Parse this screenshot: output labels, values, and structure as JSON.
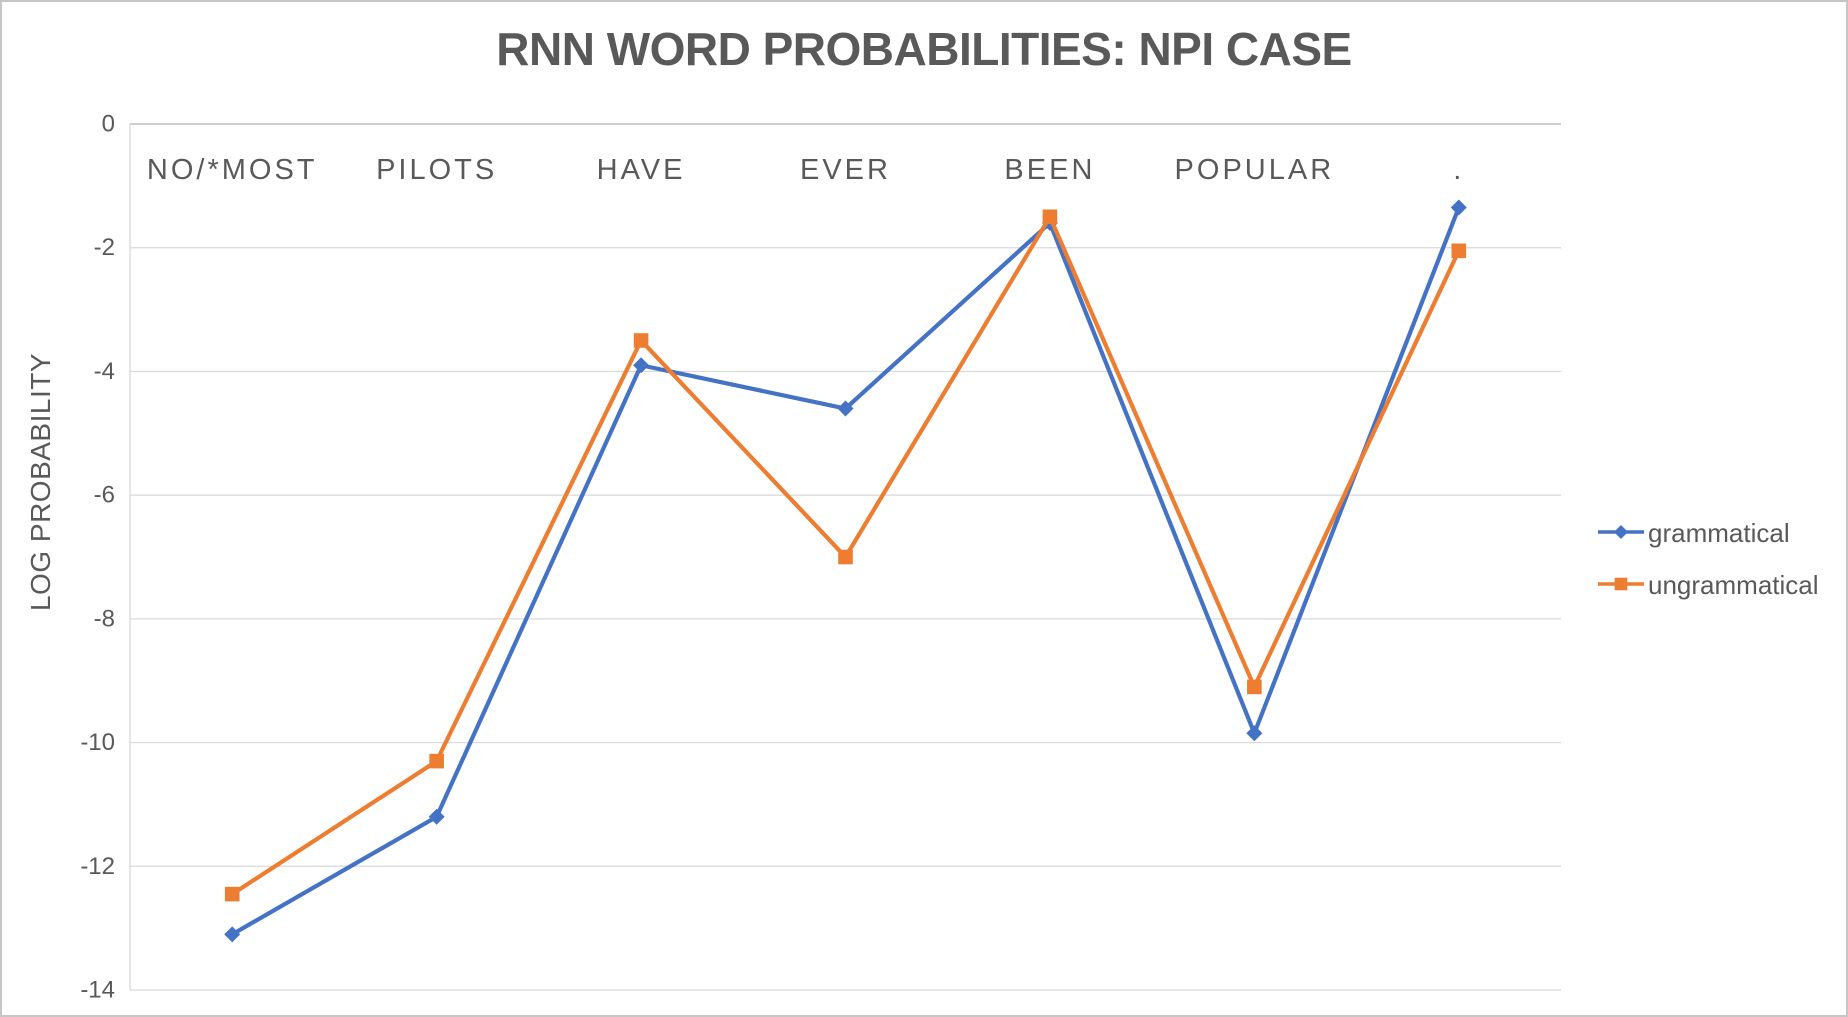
{
  "window": {
    "background": "#FFFFFF",
    "border_color": "#C6C6C6"
  },
  "chart_data": {
    "type": "line",
    "title": "RNN WORD PROBABILITIES: NPI CASE",
    "ylabel": "LOG PROBABILITY",
    "xlabel": "",
    "categories": [
      "NO/*MOST",
      "PILOTS",
      "HAVE",
      "EVER",
      "BEEN",
      "POPULAR",
      "."
    ],
    "series": [
      {
        "name": "grammatical",
        "color": "#4472C4",
        "marker": "diamond",
        "values": [
          -13.1,
          -11.2,
          -3.9,
          -4.6,
          -1.6,
          -9.85,
          -1.35
        ]
      },
      {
        "name": "ungrammatical",
        "color": "#ED7D31",
        "marker": "square",
        "values": [
          -12.45,
          -10.3,
          -3.5,
          -7.0,
          -1.5,
          -9.1,
          -2.05
        ]
      }
    ],
    "ylim": [
      -14,
      0
    ],
    "yticks": [
      0,
      -2,
      -4,
      -6,
      -8,
      -10,
      -12,
      -14
    ],
    "grid": true,
    "legend_position": "right-middle",
    "legend_labels": [
      "grammatical",
      "ungrammatical"
    ],
    "colors": {
      "grid": "#D9D9D9",
      "axis": "#BFBFBF",
      "text": "#595959"
    }
  }
}
